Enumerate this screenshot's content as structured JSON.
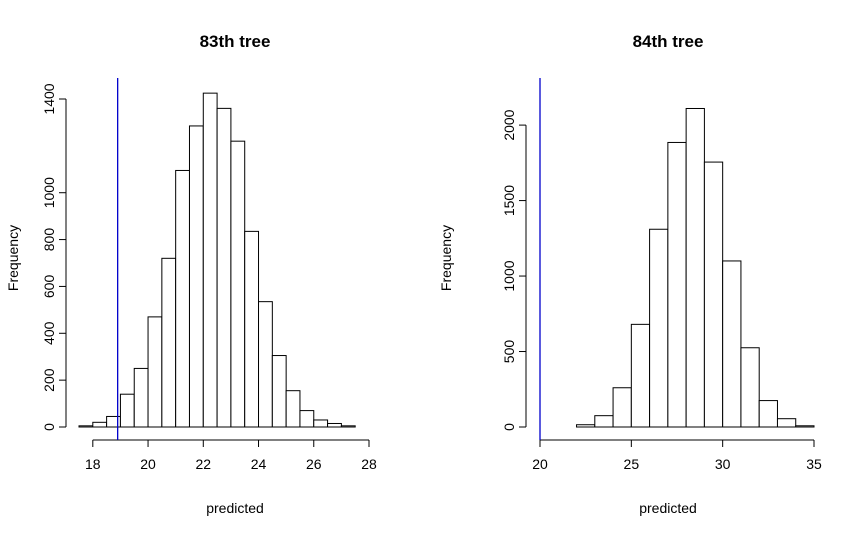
{
  "chart_data": [
    {
      "type": "histogram",
      "title": "83th tree",
      "xlabel": "predicted",
      "ylabel": "Frequency",
      "xlim": [
        17.5,
        28
      ],
      "ylim": [
        0,
        1400
      ],
      "bin_width": 0.5,
      "bin_edges": [
        17.5,
        18,
        18.5,
        19,
        19.5,
        20,
        20.5,
        21,
        21.5,
        22,
        22.5,
        23,
        23.5,
        24,
        24.5,
        25,
        25.5,
        26,
        26.5,
        27,
        27.5
      ],
      "values": [
        5,
        20,
        45,
        140,
        250,
        470,
        720,
        1095,
        1285,
        1425,
        1360,
        1220,
        835,
        535,
        305,
        155,
        70,
        30,
        15,
        5
      ],
      "x_ticks": [
        18,
        20,
        22,
        24,
        26,
        28
      ],
      "x_tick_labels": [
        "18",
        "20",
        "22",
        "24",
        "26",
        "28"
      ],
      "y_ticks": [
        0,
        200,
        400,
        600,
        800,
        1000,
        1400
      ],
      "y_tick_labels": [
        "0",
        "200",
        "400",
        "600",
        "800",
        "1000",
        "1400"
      ],
      "reference_line": {
        "x": 18.9,
        "color": "#0000cc"
      },
      "bar_fill": "#ffffff",
      "bar_stroke": "#000000"
    },
    {
      "type": "histogram",
      "title": "84th tree",
      "xlabel": "predicted",
      "ylabel": "Frequency",
      "xlim": [
        20,
        35
      ],
      "ylim": [
        0,
        2100
      ],
      "bin_width": 1,
      "bin_edges": [
        20,
        21,
        22,
        23,
        24,
        25,
        26,
        27,
        28,
        29,
        30,
        31,
        32,
        33,
        34,
        35
      ],
      "values": [
        0,
        0,
        15,
        75,
        260,
        680,
        1310,
        1885,
        2110,
        1755,
        1100,
        525,
        175,
        55,
        8
      ],
      "x_ticks": [
        20,
        25,
        30,
        35
      ],
      "x_tick_labels": [
        "20",
        "25",
        "30",
        "35"
      ],
      "y_ticks": [
        0,
        500,
        1000,
        1500,
        2000
      ],
      "y_tick_labels": [
        "0",
        "500",
        "1000",
        "1500",
        "2000"
      ],
      "reference_line": {
        "x": 20,
        "color": "#0000cc"
      },
      "bar_fill": "#ffffff",
      "bar_stroke": "#000000"
    }
  ]
}
